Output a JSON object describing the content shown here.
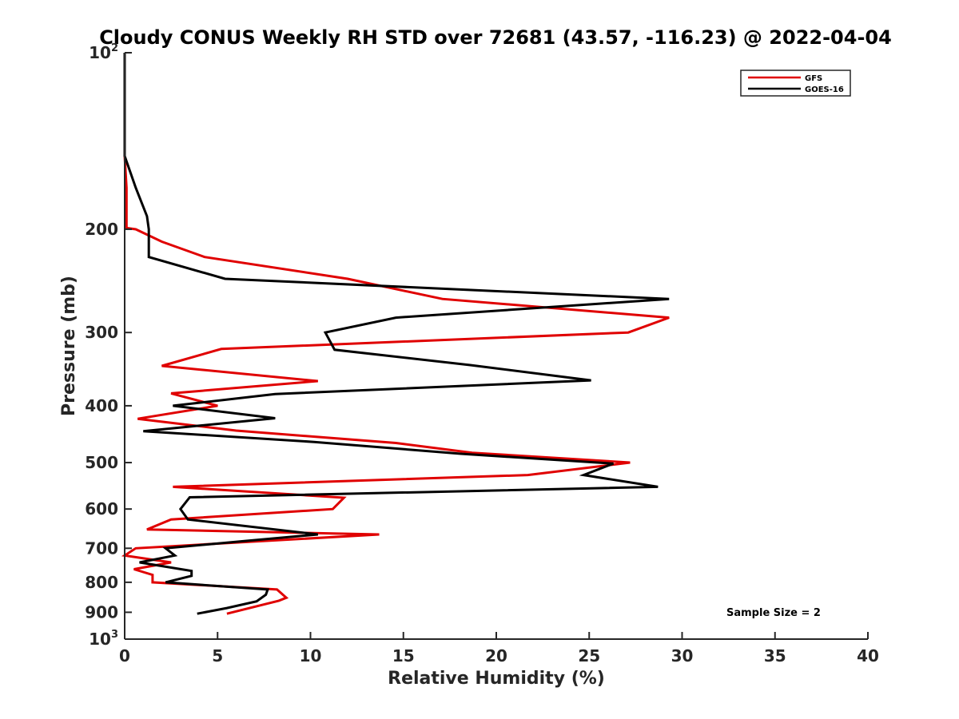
{
  "chart_data": {
    "type": "line",
    "title": "Cloudy CONUS Weekly RH STD over 72681 (43.57, -116.23) @ 2022-04-04",
    "xlabel": "Relative Humidity (%)",
    "ylabel": "Pressure (mb)",
    "xlim": [
      0,
      40
    ],
    "ylim": [
      100,
      1000
    ],
    "yscale": "log",
    "y_reversed": true,
    "x_ticks": [
      "0",
      "5",
      "10",
      "15",
      "20",
      "25",
      "30",
      "35",
      "40"
    ],
    "y_ticks": [
      {
        "value": 100,
        "label": "10",
        "sup": "2"
      },
      {
        "value": 200,
        "label": "200",
        "sup": ""
      },
      {
        "value": 300,
        "label": "300",
        "sup": ""
      },
      {
        "value": 400,
        "label": "400",
        "sup": ""
      },
      {
        "value": 500,
        "label": "500",
        "sup": ""
      },
      {
        "value": 600,
        "label": "600",
        "sup": ""
      },
      {
        "value": 700,
        "label": "700",
        "sup": ""
      },
      {
        "value": 800,
        "label": "800",
        "sup": ""
      },
      {
        "value": 900,
        "label": "900",
        "sup": ""
      },
      {
        "value": 1000,
        "label": "10",
        "sup": "3"
      }
    ],
    "grid": false,
    "legend_position": "top-right",
    "annotation": "Sample Size = 2",
    "series": [
      {
        "name": "GFS",
        "color": "#e00000",
        "points": [
          [
            0.0,
            100
          ],
          [
            0.0,
            150
          ],
          [
            0.1,
            170
          ],
          [
            0.1,
            199
          ],
          [
            0.6,
            200
          ],
          [
            2.0,
            210
          ],
          [
            4.3,
            223
          ],
          [
            12.0,
            243
          ],
          [
            17.1,
            263
          ],
          [
            29.3,
            283
          ],
          [
            27.1,
            300
          ],
          [
            5.2,
            320
          ],
          [
            2.0,
            342
          ],
          [
            10.4,
            363
          ],
          [
            2.5,
            381
          ],
          [
            5.0,
            400
          ],
          [
            0.7,
            421
          ],
          [
            6.0,
            441
          ],
          [
            14.6,
            463
          ],
          [
            18.7,
            481
          ],
          [
            27.2,
            500
          ],
          [
            21.7,
            525
          ],
          [
            2.6,
            550
          ],
          [
            11.8,
            574
          ],
          [
            11.2,
            600
          ],
          [
            2.5,
            625
          ],
          [
            1.2,
            650
          ],
          [
            13.7,
            663
          ],
          [
            0.6,
            700
          ],
          [
            0.0,
            720
          ],
          [
            2.5,
            740
          ],
          [
            0.5,
            760
          ],
          [
            1.5,
            777
          ],
          [
            1.5,
            800
          ],
          [
            8.2,
            823
          ],
          [
            8.7,
            850
          ],
          [
            8.3,
            860
          ],
          [
            5.5,
            905
          ]
        ]
      },
      {
        "name": "GOES-16",
        "color": "#000000",
        "points": [
          [
            0.0,
            100
          ],
          [
            0.0,
            150
          ],
          [
            0.6,
            170
          ],
          [
            1.2,
            190
          ],
          [
            1.3,
            200
          ],
          [
            1.3,
            223
          ],
          [
            5.4,
            243
          ],
          [
            29.3,
            263
          ],
          [
            14.6,
            283
          ],
          [
            10.8,
            300
          ],
          [
            11.3,
            321
          ],
          [
            18.6,
            341
          ],
          [
            25.1,
            362
          ],
          [
            8.1,
            382
          ],
          [
            2.6,
            400
          ],
          [
            8.1,
            420
          ],
          [
            1.0,
            442
          ],
          [
            10.2,
            461
          ],
          [
            18.1,
            483
          ],
          [
            26.3,
            502
          ],
          [
            24.7,
            525
          ],
          [
            28.7,
            550
          ],
          [
            3.5,
            573
          ],
          [
            3.0,
            600
          ],
          [
            3.4,
            625
          ],
          [
            10.4,
            663
          ],
          [
            6.5,
            680
          ],
          [
            2.2,
            700
          ],
          [
            2.7,
            720
          ],
          [
            0.8,
            740
          ],
          [
            3.6,
            765
          ],
          [
            3.6,
            780
          ],
          [
            2.2,
            800
          ],
          [
            7.7,
            823
          ],
          [
            7.6,
            840
          ],
          [
            7.1,
            862
          ],
          [
            5.5,
            885
          ],
          [
            3.9,
            905
          ]
        ]
      }
    ]
  }
}
